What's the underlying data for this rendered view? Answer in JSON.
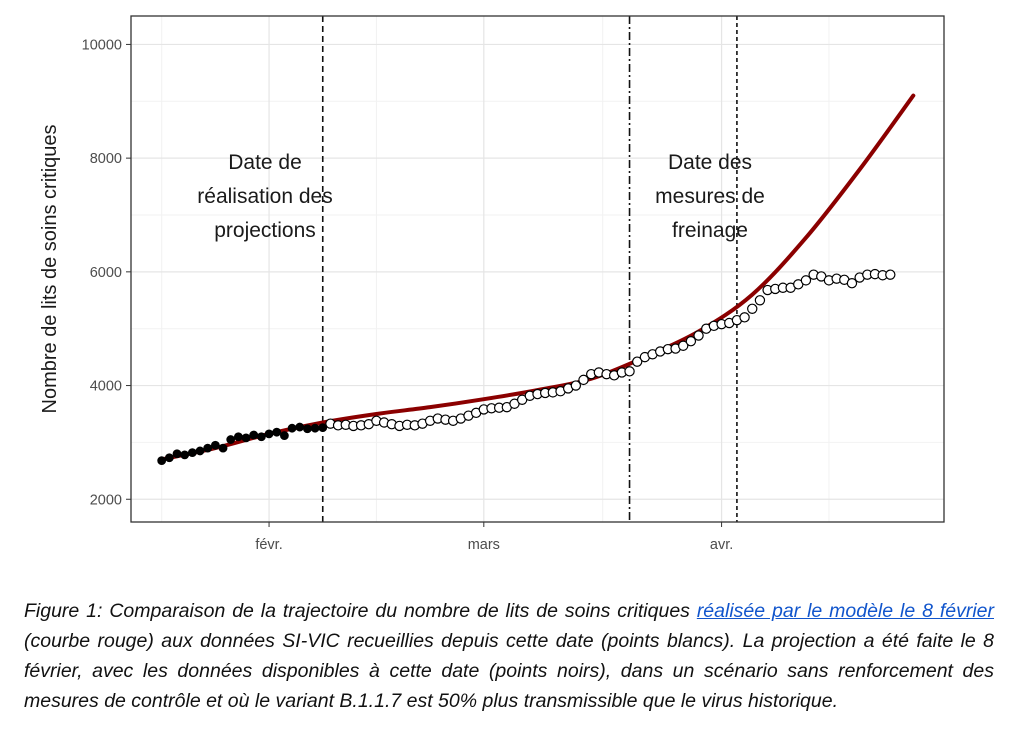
{
  "chart_data": {
    "type": "line",
    "ylabel": "Nombre de lits de soins critiques",
    "xlabel": "",
    "ylim": [
      1600,
      10500
    ],
    "yticks": [
      2000,
      4000,
      6000,
      8000,
      10000
    ],
    "xlim": [
      "2021-01-14",
      "2021-04-30"
    ],
    "xticks": [
      {
        "date": "2021-02-01",
        "label": "févr."
      },
      {
        "date": "2021-03-01",
        "label": "mars"
      },
      {
        "date": "2021-04-01",
        "label": "avr."
      }
    ],
    "grid": true,
    "vlines": [
      {
        "date": "2021-02-08",
        "style": "dashed"
      },
      {
        "date": "2021-03-20",
        "style": "dashdot"
      },
      {
        "date": "2021-04-03",
        "style": "dotted"
      }
    ],
    "annotations": [
      {
        "lines": [
          "Date de",
          "réalisation des",
          "projections"
        ]
      },
      {
        "lines": [
          "Date des",
          "mesures de",
          "freinage"
        ]
      }
    ],
    "series": [
      {
        "role": "projection",
        "style": "line",
        "color": "#8b0000",
        "x": [
          "2021-01-18",
          "2021-01-25",
          "2021-02-01",
          "2021-02-08",
          "2021-02-15",
          "2021-02-22",
          "2021-03-01",
          "2021-03-08",
          "2021-03-15",
          "2021-03-22",
          "2021-03-29",
          "2021-04-05",
          "2021-04-12",
          "2021-04-19",
          "2021-04-26"
        ],
        "y": [
          2700,
          2900,
          3150,
          3350,
          3500,
          3620,
          3760,
          3920,
          4120,
          4500,
          4950,
          5600,
          6600,
          7800,
          9100
        ]
      },
      {
        "role": "observed-before",
        "style": "points-filled",
        "color": "#000000",
        "x": [
          "2021-01-18",
          "2021-01-19",
          "2021-01-20",
          "2021-01-21",
          "2021-01-22",
          "2021-01-23",
          "2021-01-24",
          "2021-01-25",
          "2021-01-26",
          "2021-01-27",
          "2021-01-28",
          "2021-01-29",
          "2021-01-30",
          "2021-01-31",
          "2021-02-01",
          "2021-02-02",
          "2021-02-03",
          "2021-02-04",
          "2021-02-05",
          "2021-02-06",
          "2021-02-07",
          "2021-02-08"
        ],
        "y": [
          2680,
          2730,
          2800,
          2780,
          2820,
          2850,
          2900,
          2950,
          2900,
          3050,
          3100,
          3080,
          3130,
          3100,
          3150,
          3180,
          3120,
          3250,
          3270,
          3240,
          3250,
          3260
        ]
      },
      {
        "role": "observed-after",
        "style": "points-open",
        "color": "#000000",
        "x": [
          "2021-02-09",
          "2021-02-10",
          "2021-02-11",
          "2021-02-12",
          "2021-02-13",
          "2021-02-14",
          "2021-02-15",
          "2021-02-16",
          "2021-02-17",
          "2021-02-18",
          "2021-02-19",
          "2021-02-20",
          "2021-02-21",
          "2021-02-22",
          "2021-02-23",
          "2021-02-24",
          "2021-02-25",
          "2021-02-26",
          "2021-02-27",
          "2021-02-28",
          "2021-03-01",
          "2021-03-02",
          "2021-03-03",
          "2021-03-04",
          "2021-03-05",
          "2021-03-06",
          "2021-03-07",
          "2021-03-08",
          "2021-03-09",
          "2021-03-10",
          "2021-03-11",
          "2021-03-12",
          "2021-03-13",
          "2021-03-14",
          "2021-03-15",
          "2021-03-16",
          "2021-03-17",
          "2021-03-18",
          "2021-03-19",
          "2021-03-20",
          "2021-03-21",
          "2021-03-22",
          "2021-03-23",
          "2021-03-24",
          "2021-03-25",
          "2021-03-26",
          "2021-03-27",
          "2021-03-28",
          "2021-03-29",
          "2021-03-30",
          "2021-03-31",
          "2021-04-01",
          "2021-04-02",
          "2021-04-03",
          "2021-04-04",
          "2021-04-05",
          "2021-04-06",
          "2021-04-07",
          "2021-04-08",
          "2021-04-09",
          "2021-04-10",
          "2021-04-11",
          "2021-04-12",
          "2021-04-13",
          "2021-04-14",
          "2021-04-15",
          "2021-04-16",
          "2021-04-17",
          "2021-04-18",
          "2021-04-19",
          "2021-04-20",
          "2021-04-21",
          "2021-04-22",
          "2021-04-23"
        ],
        "y": [
          3330,
          3300,
          3310,
          3290,
          3300,
          3320,
          3380,
          3350,
          3320,
          3290,
          3310,
          3300,
          3330,
          3380,
          3420,
          3400,
          3380,
          3420,
          3470,
          3520,
          3580,
          3600,
          3610,
          3620,
          3680,
          3750,
          3820,
          3850,
          3870,
          3880,
          3900,
          3950,
          4000,
          4100,
          4200,
          4230,
          4200,
          4180,
          4230,
          4250,
          4420,
          4500,
          4550,
          4600,
          4640,
          4650,
          4700,
          4780,
          4880,
          5000,
          5050,
          5080,
          5100,
          5150,
          5200,
          5350,
          5500,
          5680,
          5700,
          5720,
          5720,
          5780,
          5850,
          5950,
          5920,
          5850,
          5880,
          5860,
          5800,
          5900,
          5950,
          5960,
          5940,
          5950
        ]
      }
    ]
  },
  "caption": {
    "part1": "Figure 1: Comparaison de la trajectoire du nombre de lits de soins critiques ",
    "link": "réalisée par le modèle le 8 février",
    "part2": " (courbe rouge) aux données SI-VIC recueillies depuis cette date (points blancs). La projection a été faite le 8 février, avec les données disponibles à cette date (points noirs), dans un scénario sans renforcement des mesures de contrôle et où le variant B.1.1.7 est 50% plus transmissible que le virus historique."
  }
}
